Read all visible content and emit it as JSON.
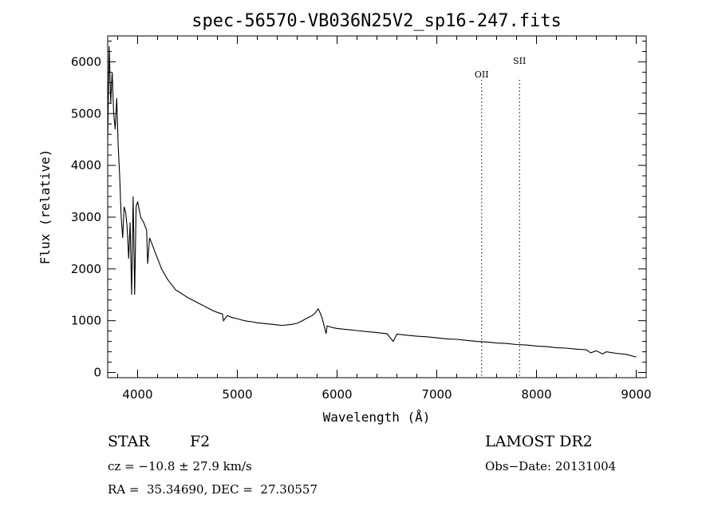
{
  "chart_data": {
    "type": "line",
    "title": "spec-56570-VB036N25V2_sp16-247.fits",
    "xlabel": "Wavelength (Å)",
    "ylabel": "Flux (relative)",
    "xlim": [
      3700,
      9100
    ],
    "ylim": [
      -100,
      6500
    ],
    "xticks": [
      4000,
      5000,
      6000,
      7000,
      8000,
      9000
    ],
    "yticks": [
      0,
      1000,
      2000,
      3000,
      4000,
      5000,
      6000
    ],
    "grid": false,
    "series": [
      {
        "x": [
          3700,
          3715,
          3730,
          3745,
          3760,
          3775,
          3790,
          3805,
          3820,
          3835,
          3850,
          3865,
          3880,
          3895,
          3910,
          3925,
          3940,
          3955,
          3970,
          3985,
          4000,
          4030,
          4060,
          4090,
          4101,
          4120,
          4150,
          4180,
          4210,
          4240,
          4270,
          4300,
          4340,
          4380,
          4420,
          4460,
          4500,
          4550,
          4600,
          4650,
          4700,
          4750,
          4800,
          4850,
          4861,
          4900,
          4950,
          5000,
          5050,
          5100,
          5150,
          5200,
          5250,
          5300,
          5350,
          5400,
          5450,
          5500,
          5550,
          5600,
          5650,
          5700,
          5750,
          5780,
          5810,
          5830,
          5850,
          5870,
          5890,
          5900,
          5950,
          6000,
          6100,
          6200,
          6300,
          6400,
          6500,
          6563,
          6600,
          6700,
          6800,
          6900,
          7000,
          7100,
          7200,
          7300,
          7400,
          7500,
          7600,
          7700,
          7800,
          7900,
          8000,
          8100,
          8200,
          8300,
          8400,
          8500,
          8542,
          8600,
          8662,
          8700,
          8800,
          8900,
          9000
        ],
        "values": [
          4500,
          6300,
          5200,
          5800,
          5000,
          4700,
          5300,
          4400,
          3800,
          3000,
          2600,
          3200,
          3100,
          2800,
          2200,
          2900,
          1500,
          3400,
          1500,
          3200,
          3300,
          3000,
          2900,
          2750,
          2100,
          2600,
          2450,
          2300,
          2150,
          2000,
          1900,
          1800,
          1700,
          1600,
          1550,
          1500,
          1450,
          1400,
          1350,
          1300,
          1250,
          1200,
          1160,
          1130,
          1000,
          1100,
          1060,
          1040,
          1010,
          990,
          980,
          960,
          950,
          940,
          930,
          920,
          910,
          920,
          930,
          950,
          1000,
          1050,
          1100,
          1150,
          1230,
          1150,
          1050,
          900,
          750,
          900,
          870,
          850,
          830,
          810,
          790,
          770,
          750,
          600,
          740,
          720,
          700,
          690,
          670,
          650,
          640,
          620,
          600,
          590,
          570,
          560,
          540,
          530,
          510,
          500,
          480,
          470,
          450,
          440,
          380,
          420,
          360,
          400,
          370,
          350,
          300
        ]
      }
    ],
    "lines": [
      {
        "label": "OII",
        "x": 7450
      },
      {
        "label": "SII",
        "x": 7830
      }
    ]
  },
  "info": {
    "object_class": "STAR",
    "subclass": "F2",
    "survey": "LAMOST DR2",
    "cz": "cz = −10.8 ± 27.9 km/s",
    "obs_date": "Obs−Date: 20131004",
    "coords": "RA =  35.34690, DEC =  27.30557"
  }
}
